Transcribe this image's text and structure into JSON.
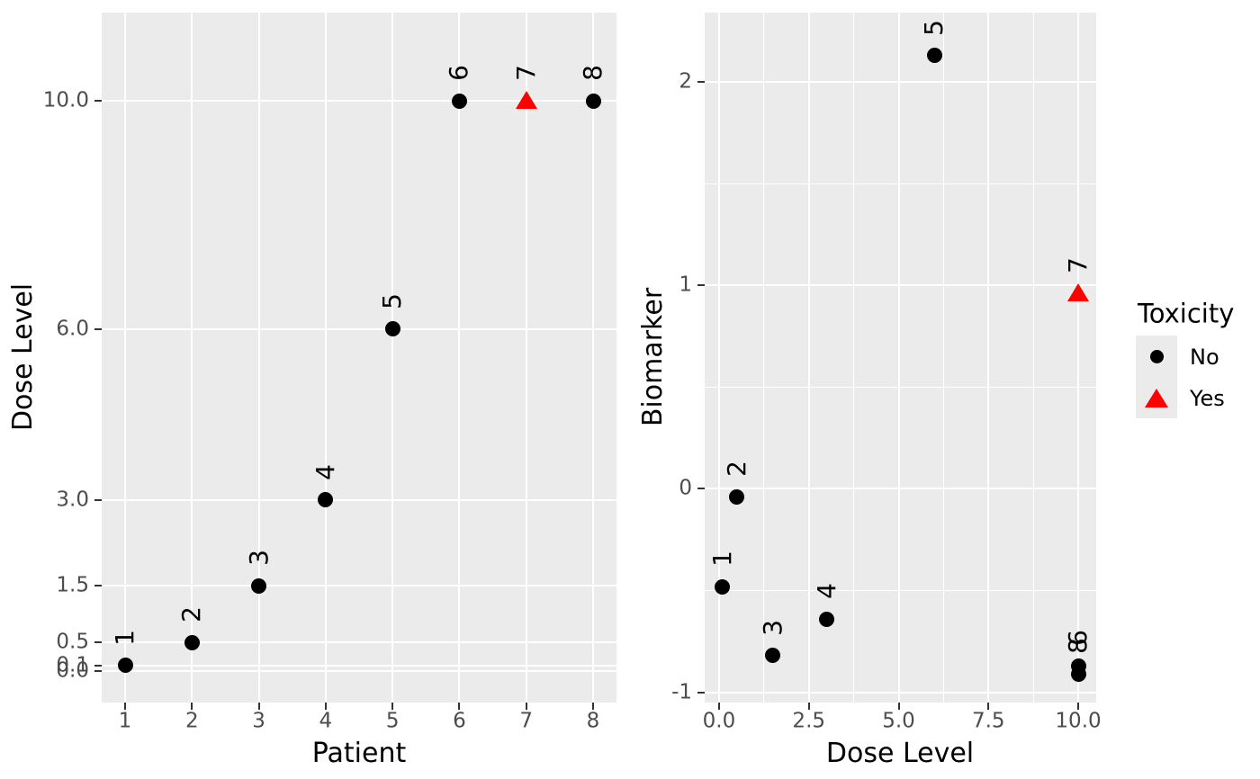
{
  "chart_data": [
    {
      "id": "dose-by-patient",
      "type": "scatter",
      "title": "",
      "xlabel": "Patient",
      "ylabel": "Dose Level",
      "xlim": [
        0.65,
        8.35
      ],
      "ylim": [
        -0.55,
        11.55
      ],
      "grid": true,
      "legend_position": "none",
      "point_label_style": "patient number printed above each point, rotated 90 degrees",
      "points": [
        {
          "label": "1",
          "x": 1,
          "y": 0.1,
          "toxicity": "No"
        },
        {
          "label": "2",
          "x": 2,
          "y": 0.5,
          "toxicity": "No"
        },
        {
          "label": "3",
          "x": 3,
          "y": 1.5,
          "toxicity": "No"
        },
        {
          "label": "4",
          "x": 4,
          "y": 3.0,
          "toxicity": "No"
        },
        {
          "label": "5",
          "x": 5,
          "y": 6.0,
          "toxicity": "No"
        },
        {
          "label": "6",
          "x": 6,
          "y": 10.0,
          "toxicity": "No"
        },
        {
          "label": "7",
          "x": 7,
          "y": 10.0,
          "toxicity": "Yes"
        },
        {
          "label": "8",
          "x": 8,
          "y": 10.0,
          "toxicity": "No"
        }
      ],
      "x_ticks": {
        "values": [
          1,
          2,
          3,
          4,
          5,
          6,
          7,
          8
        ],
        "labels": [
          "1",
          "2",
          "3",
          "4",
          "5",
          "6",
          "7",
          "8"
        ]
      },
      "y_ticks": {
        "values": [
          0,
          0.1,
          0.5,
          1.5,
          3,
          6,
          10
        ],
        "labels": [
          "0.0",
          "0.1",
          "0.5",
          "1.5",
          "3.0",
          "6.0",
          "10.0"
        ]
      },
      "x_minor": [],
      "y_minor": []
    },
    {
      "id": "biomarker-by-dose",
      "type": "scatter",
      "title": "",
      "xlabel": "Dose Level",
      "ylabel": "Biomarker",
      "xlim": [
        -0.4,
        10.5
      ],
      "ylim": [
        -1.05,
        2.34
      ],
      "grid": true,
      "legend_position": "right",
      "point_label_style": "patient number printed above each point, rotated 90 degrees",
      "points": [
        {
          "label": "1",
          "x": 0.1,
          "y": -0.48,
          "toxicity": "No"
        },
        {
          "label": "2",
          "x": 0.5,
          "y": -0.04,
          "toxicity": "No"
        },
        {
          "label": "3",
          "x": 1.5,
          "y": -0.82,
          "toxicity": "No"
        },
        {
          "label": "4",
          "x": 3.0,
          "y": -0.64,
          "toxicity": "No"
        },
        {
          "label": "5",
          "x": 6.0,
          "y": 2.13,
          "toxicity": "No"
        },
        {
          "label": "6",
          "x": 10.0,
          "y": -0.87,
          "toxicity": "No"
        },
        {
          "label": "7",
          "x": 10.0,
          "y": 0.96,
          "toxicity": "Yes"
        },
        {
          "label": "8",
          "x": 10.0,
          "y": -0.91,
          "toxicity": "No"
        }
      ],
      "x_ticks": {
        "values": [
          0,
          2.5,
          5,
          7.5,
          10
        ],
        "labels": [
          "0.0",
          "2.5",
          "5.0",
          "7.5",
          "10.0"
        ]
      },
      "y_ticks": {
        "values": [
          -1,
          0,
          1,
          2
        ],
        "labels": [
          "-1",
          "0",
          "1",
          "2"
        ]
      },
      "x_minor": [
        1.25,
        3.75,
        6.25,
        8.75
      ],
      "y_minor": [
        -0.5,
        0.5,
        1.5
      ]
    }
  ],
  "legend": {
    "title": "Toxicity",
    "items": [
      {
        "label": "No",
        "shape": "circle",
        "color": "#000000"
      },
      {
        "label": "Yes",
        "shape": "triangle",
        "color": "#FF0000"
      }
    ]
  },
  "style": {
    "panel_background": "#EBEBEB",
    "grid_color": "#FFFFFF",
    "tick_color": "#333333",
    "tick_label_color": "#4D4D4D",
    "text_color": "#000000",
    "no_color": "#000000",
    "yes_color": "#FF0000"
  }
}
